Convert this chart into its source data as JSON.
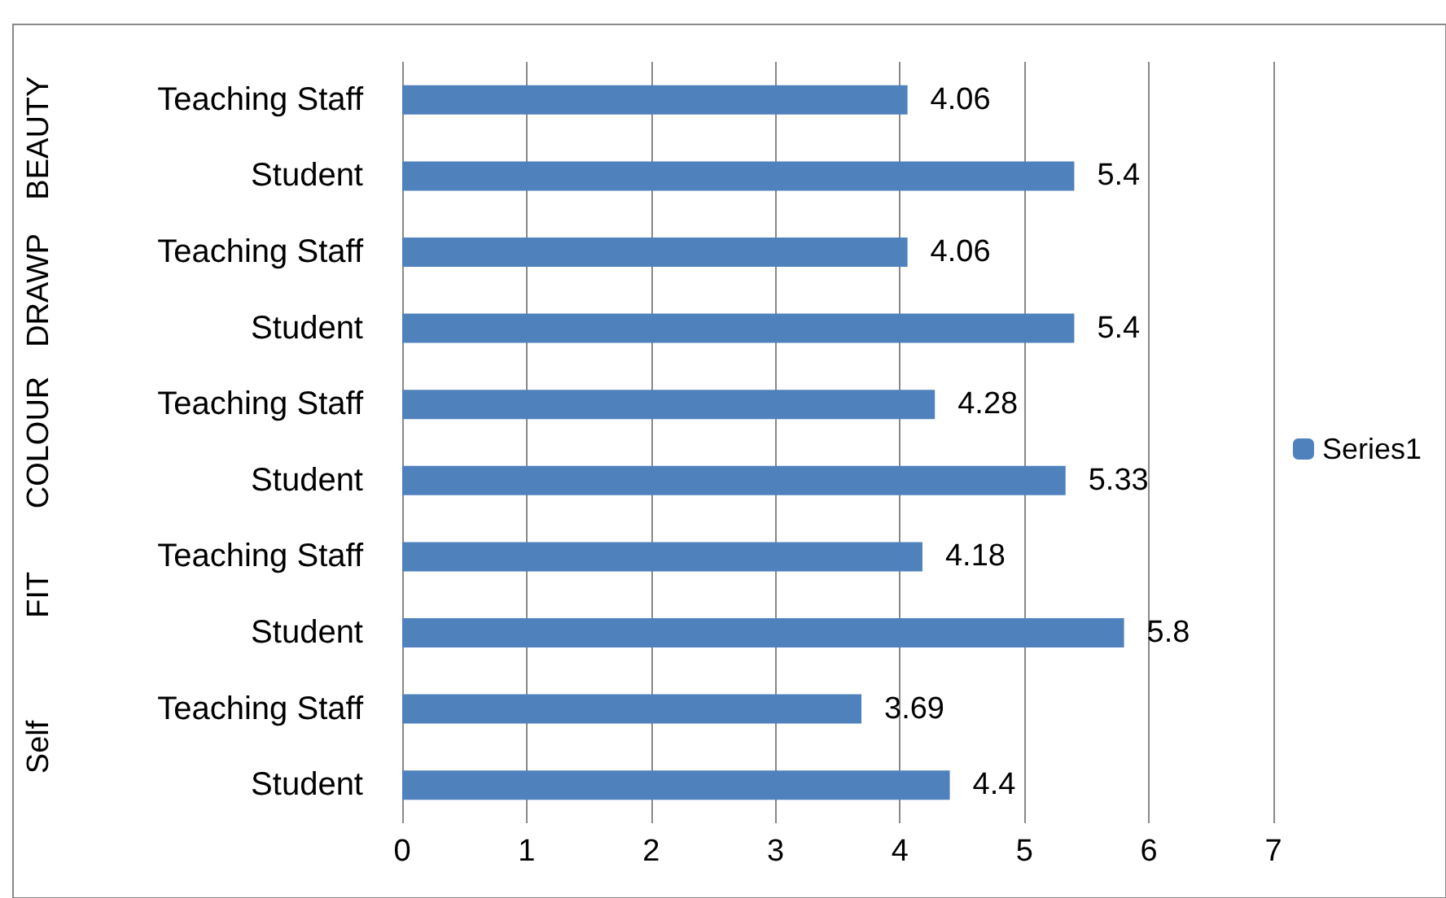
{
  "chart_data": {
    "type": "bar",
    "orientation": "horizontal",
    "categories": [
      "Teaching Staff",
      "Student",
      "Teaching Staff",
      "Student",
      "Teaching Staff",
      "Student",
      "Teaching Staff",
      "Student",
      "Teaching Staff",
      "Student"
    ],
    "series": [
      {
        "name": "Series1",
        "color": "#4f81bd",
        "values": [
          4.06,
          5.4,
          4.06,
          5.4,
          4.28,
          5.33,
          4.18,
          5.8,
          3.69,
          4.4
        ]
      }
    ],
    "annotations": [
      "BEAUTY",
      "DRAWP",
      "COLOUR",
      "FIT",
      "Self"
    ],
    "xlim": [
      0,
      7
    ],
    "xticks": [
      0,
      1,
      2,
      3,
      4,
      5,
      6,
      7
    ],
    "grid": "x",
    "legend": "right",
    "data_labels": true
  }
}
